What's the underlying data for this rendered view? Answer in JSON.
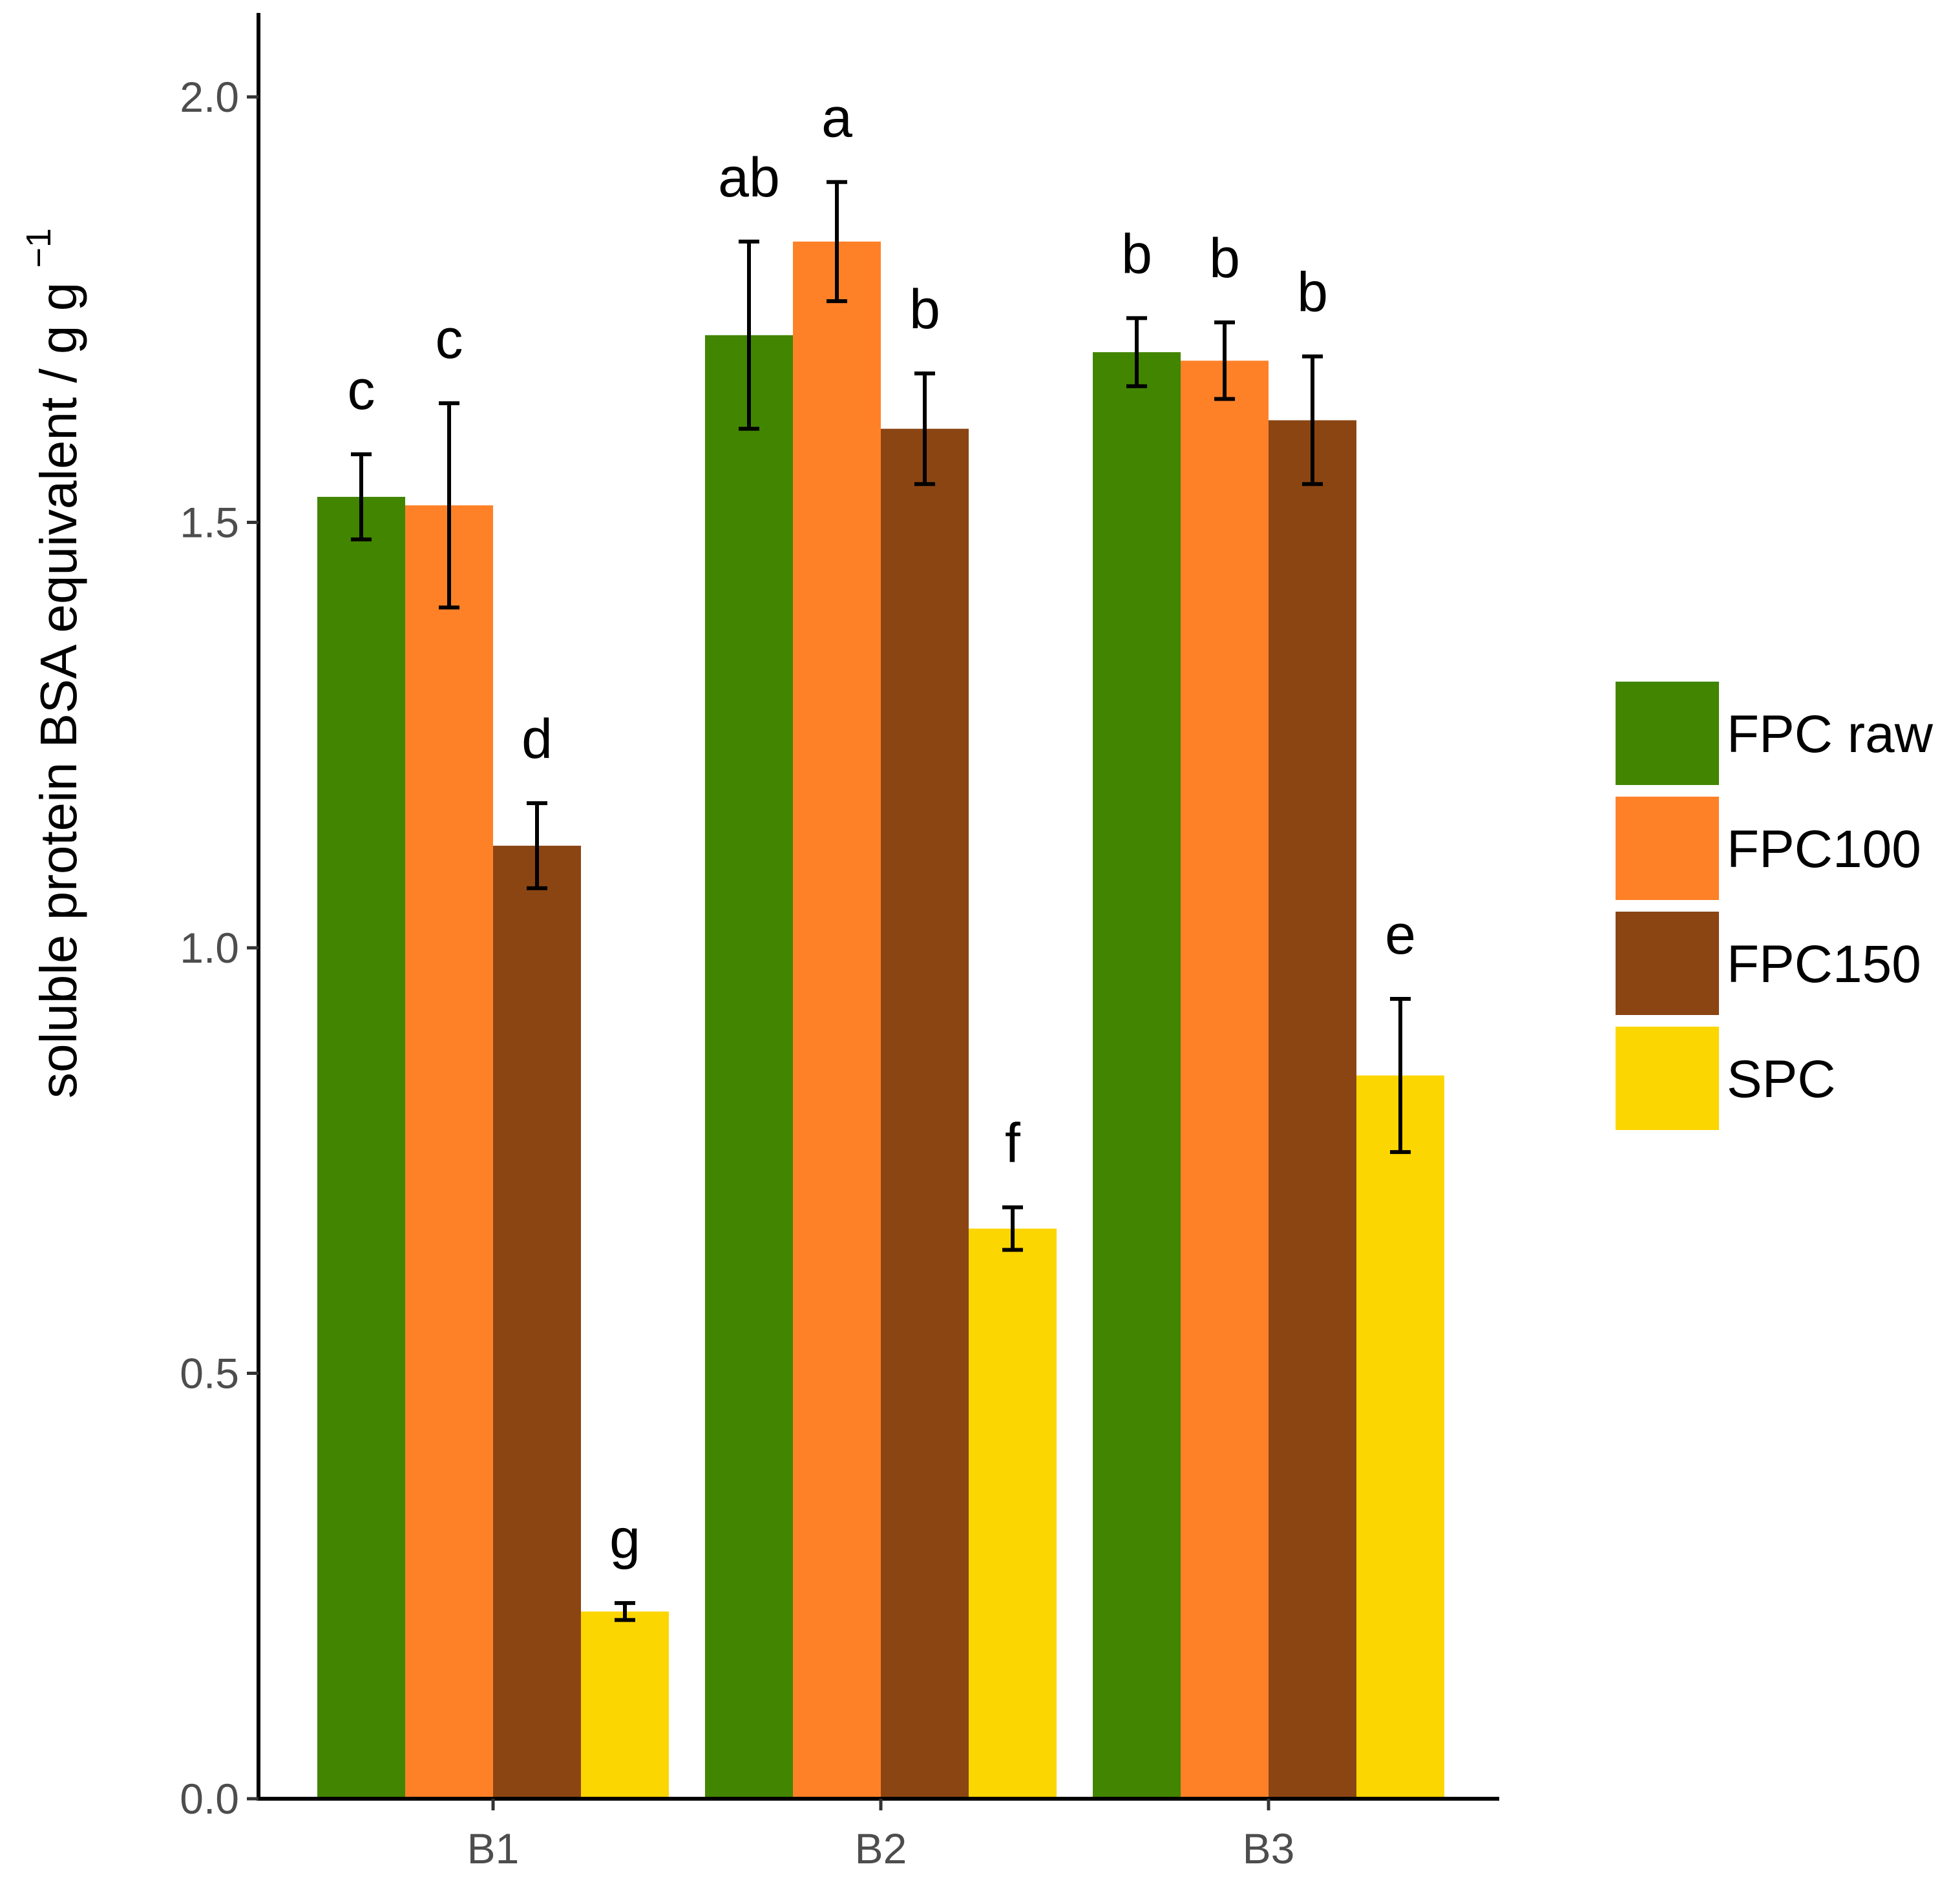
{
  "chart_data": {
    "type": "bar",
    "title": "",
    "xlabel": "",
    "ylabel": "soluble protein BSA equivalent / g g",
    "ylabel_superscript": "−1",
    "ylim": [
      0,
      2.1
    ],
    "yticks": [
      "0.0",
      "0.5",
      "1.0",
      "1.5",
      "2.0"
    ],
    "ytick_values": [
      0,
      0.5,
      1.0,
      1.5,
      2.0
    ],
    "categories": [
      "B1",
      "B2",
      "B3"
    ],
    "series": [
      {
        "name": "FPC raw",
        "color": "#428500",
        "values": [
          1.53,
          1.72,
          1.7
        ],
        "errors": [
          0.05,
          0.11,
          0.04
        ],
        "letters": [
          "c",
          "ab",
          "b"
        ]
      },
      {
        "name": "FPC100",
        "color": "#FF8127",
        "values": [
          1.52,
          1.83,
          1.69
        ],
        "errors": [
          0.12,
          0.07,
          0.045
        ],
        "letters": [
          "c",
          "a",
          "b"
        ]
      },
      {
        "name": "FPC150",
        "color": "#8B4513",
        "values": [
          1.12,
          1.61,
          1.62
        ],
        "errors": [
          0.05,
          0.065,
          0.075
        ],
        "letters": [
          "d",
          "b",
          "b"
        ]
      },
      {
        "name": "SPC",
        "color": "#FCD600",
        "values": [
          0.22,
          0.67,
          0.85
        ],
        "errors": [
          0.01,
          0.025,
          0.09
        ],
        "letters": [
          "g",
          "f",
          "e"
        ]
      }
    ],
    "legend_position": "right",
    "grid": false
  }
}
